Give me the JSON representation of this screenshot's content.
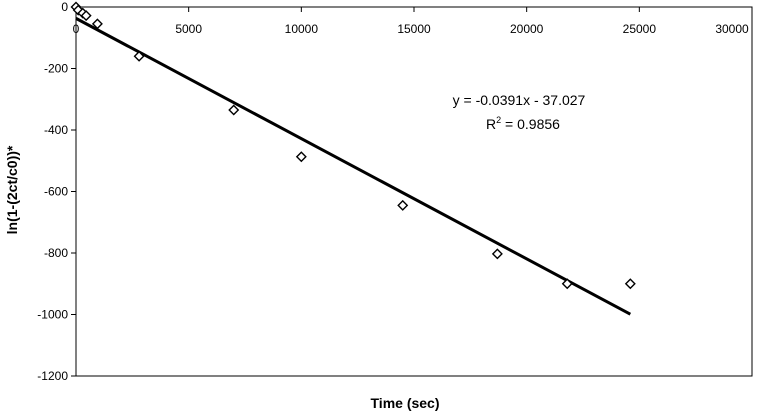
{
  "chart_data": {
    "type": "scatter",
    "title": "",
    "xlabel": "Time (sec)",
    "ylabel": "ln(1-(2ct/c0))*",
    "xlim": [
      0,
      30000
    ],
    "ylim": [
      -1200,
      0
    ],
    "x_ticks": [
      0,
      5000,
      10000,
      15000,
      20000,
      25000,
      30000
    ],
    "y_ticks": [
      0,
      -200,
      -400,
      -600,
      -800,
      -1000,
      -1200
    ],
    "x_tick_labels": [
      "0",
      "5000",
      "10000",
      "15000",
      "20000",
      "25000",
      "30000"
    ],
    "y_tick_labels": [
      "0",
      "-200",
      "-400",
      "-600",
      "-800",
      "-1000",
      "-1200"
    ],
    "grid": false,
    "legend": "none",
    "series": [
      {
        "marker": "diamond-open",
        "points": [
          {
            "x": 0,
            "y": 0
          },
          {
            "x": 100,
            "y": -10
          },
          {
            "x": 300,
            "y": -20
          },
          {
            "x": 450,
            "y": -28
          },
          {
            "x": 950,
            "y": -55
          },
          {
            "x": 2800,
            "y": -160
          },
          {
            "x": 7000,
            "y": -335
          },
          {
            "x": 10000,
            "y": -487
          },
          {
            "x": 14500,
            "y": -645
          },
          {
            "x": 18700,
            "y": -803
          },
          {
            "x": 21800,
            "y": -900
          },
          {
            "x": 24600,
            "y": -900
          }
        ]
      }
    ],
    "trendline": {
      "slope": -0.0391,
      "intercept": -37.027,
      "x_range": [
        0,
        24600
      ],
      "equation_label": "y = -0.0391x - 37.027",
      "r2_label_prefix": "R",
      "r2_label_sup": "2",
      "r2_label_value": " = 0.9856"
    },
    "colors": {
      "marker": "#000000",
      "line": "#000000",
      "frame": "#000000"
    }
  }
}
